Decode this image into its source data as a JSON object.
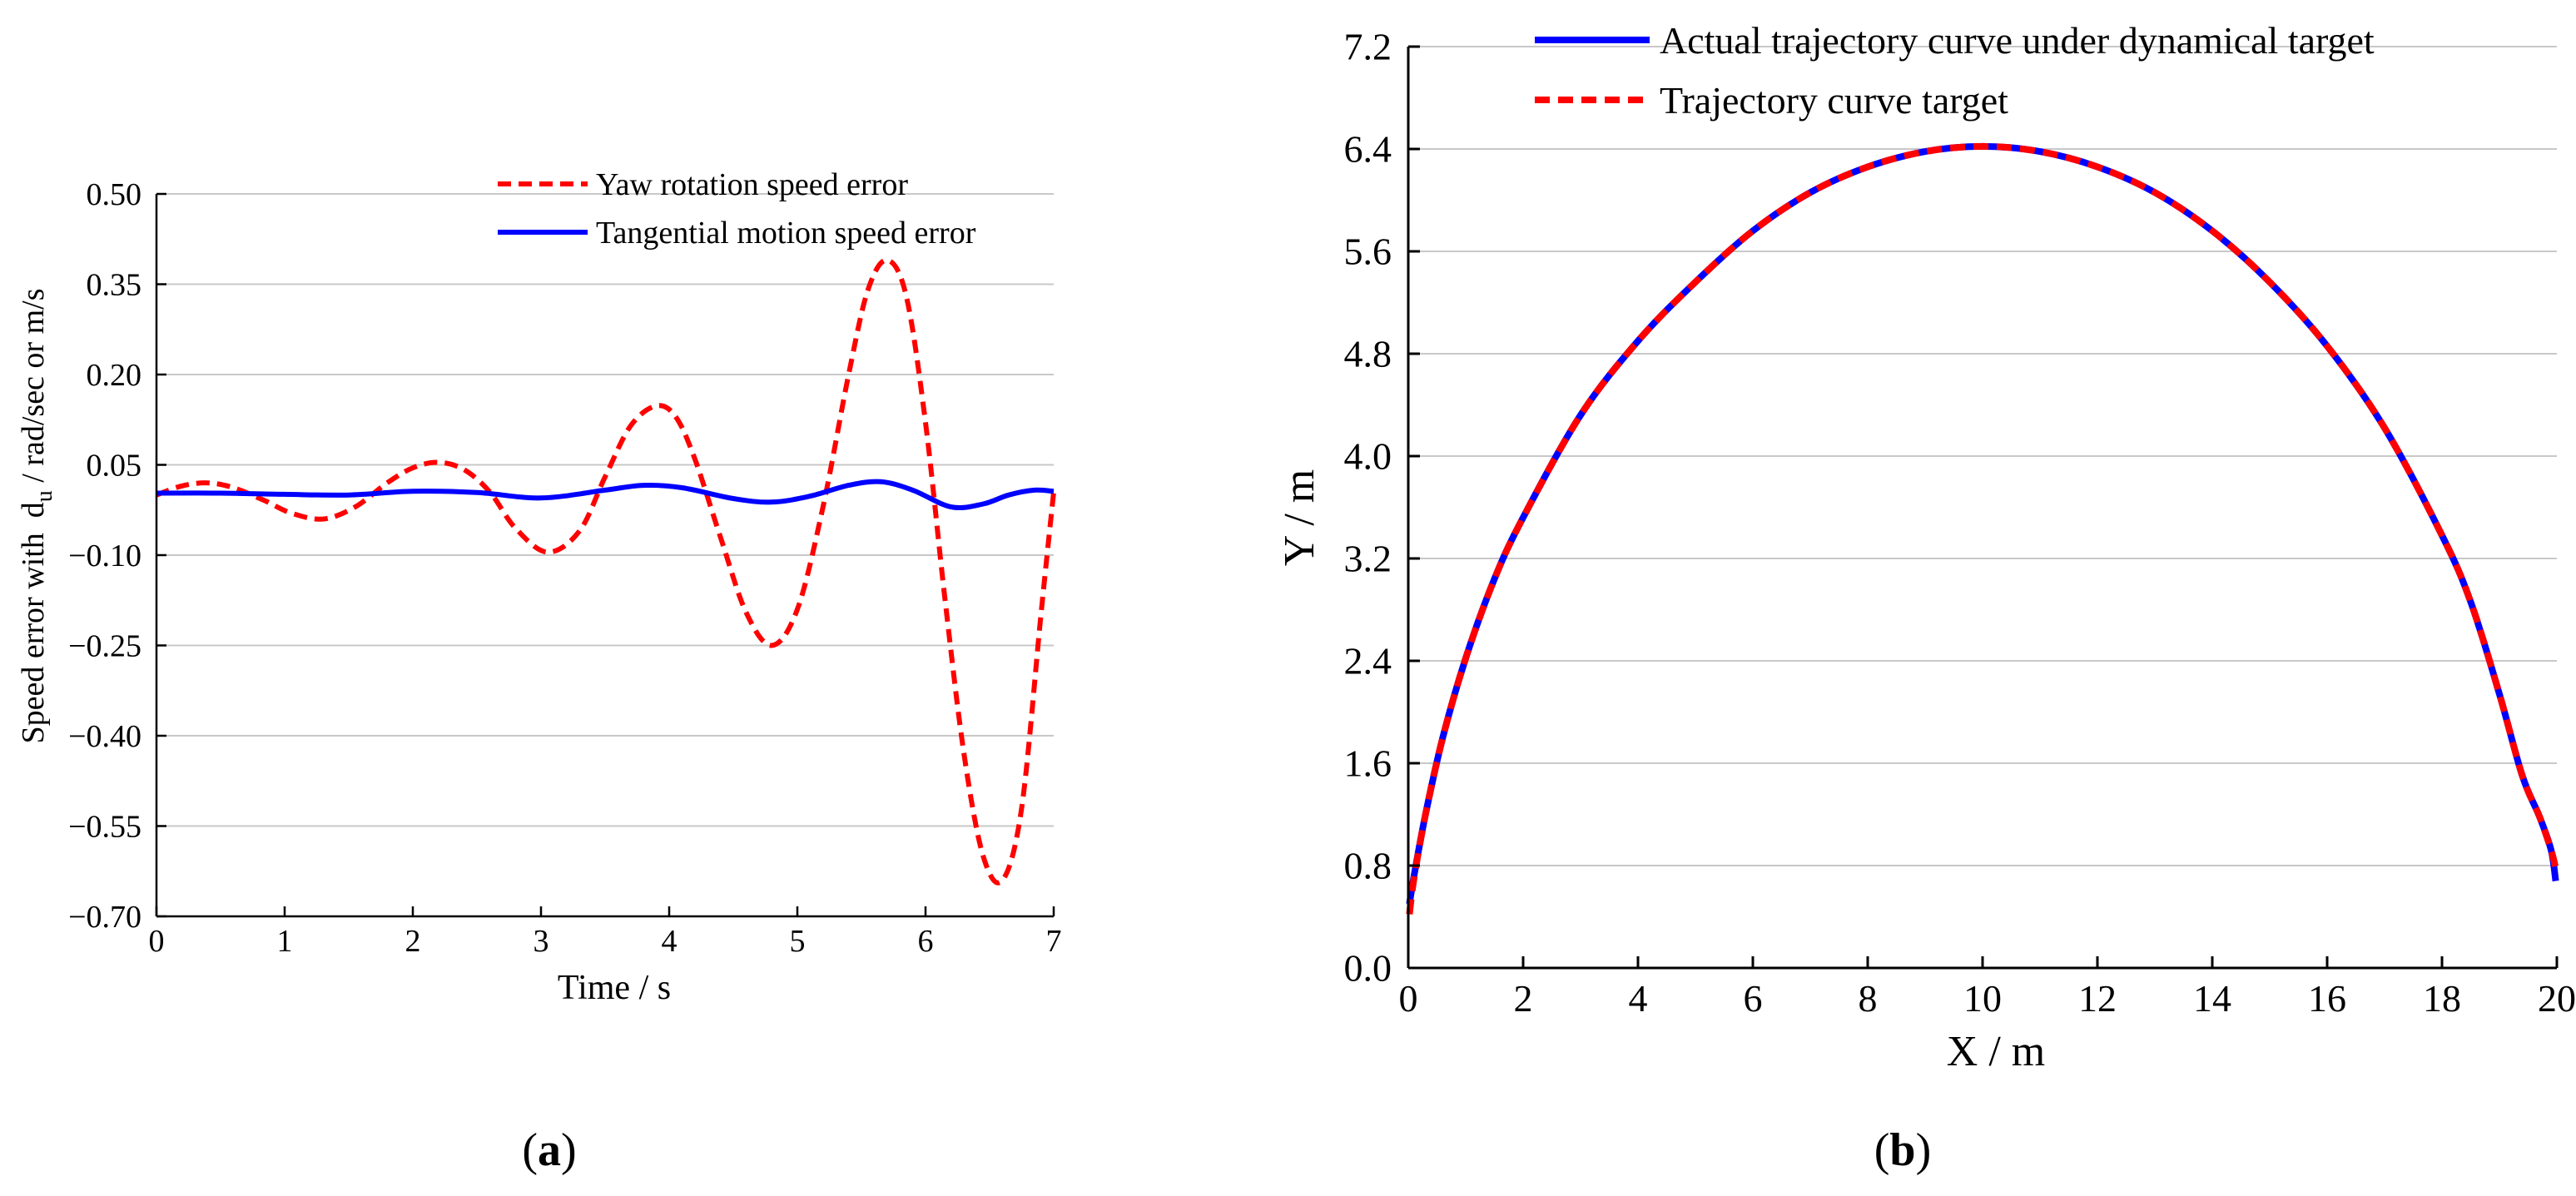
{
  "chart_data": [
    {
      "type": "line",
      "panel_label": "a",
      "title": "",
      "xlabel": "Time / s",
      "ylabel_prefix": "Speed error with",
      "ylabel_symbol": "d",
      "ylabel_subscript": "u",
      "ylabel_suffix": " / rad/sec or m/s",
      "xlim": [
        0,
        7
      ],
      "ylim": [
        -0.7,
        0.5
      ],
      "x_ticks": [
        0,
        1,
        2,
        3,
        4,
        5,
        6,
        7
      ],
      "y_ticks": [
        -0.7,
        -0.55,
        -0.4,
        -0.25,
        -0.1,
        0.05,
        0.2,
        0.35,
        0.5
      ],
      "x_tick_labels": [
        "0",
        "1",
        "2",
        "3",
        "4",
        "5",
        "6",
        "7"
      ],
      "y_tick_labels": [
        "−0.70",
        "−0.55",
        "−0.40",
        "−0.25",
        "−0.10",
        "0.05",
        "0.20",
        "0.35",
        "0.50"
      ],
      "grid": "horizontal",
      "legend_position": "top-right",
      "series": [
        {
          "name": "Yaw rotation speed error",
          "color": "#ff0000",
          "style": "dashed",
          "x": [
            0,
            0.2,
            0.4,
            0.6,
            0.85,
            1.05,
            1.3,
            1.55,
            1.8,
            2.0,
            2.2,
            2.4,
            2.6,
            2.8,
            3.05,
            3.3,
            3.5,
            3.7,
            3.9,
            4.05,
            4.2,
            4.4,
            4.6,
            4.8,
            5.0,
            5.2,
            5.4,
            5.55,
            5.7,
            5.85,
            6.0,
            6.15,
            6.3,
            6.45,
            6.6,
            6.75,
            6.9,
            7.0
          ],
          "y": [
            0.0,
            0.015,
            0.02,
            0.012,
            -0.01,
            -0.03,
            -0.04,
            -0.02,
            0.02,
            0.045,
            0.054,
            0.042,
            0.005,
            -0.055,
            -0.095,
            -0.06,
            0.03,
            0.115,
            0.148,
            0.13,
            0.06,
            -0.07,
            -0.195,
            -0.25,
            -0.19,
            -0.02,
            0.2,
            0.34,
            0.39,
            0.33,
            0.12,
            -0.17,
            -0.43,
            -0.6,
            -0.64,
            -0.52,
            -0.2,
            0.005
          ]
        },
        {
          "name": "Tangential motion speed error",
          "color": "#0000ff",
          "style": "solid",
          "x": [
            0,
            0.5,
            1.0,
            1.5,
            2.0,
            2.5,
            3.0,
            3.5,
            3.8,
            4.1,
            4.5,
            4.8,
            5.1,
            5.4,
            5.65,
            5.9,
            6.2,
            6.45,
            6.65,
            6.85,
            7.0
          ],
          "y": [
            0.003,
            0.003,
            0.001,
            0.0,
            0.006,
            0.004,
            -0.005,
            0.008,
            0.016,
            0.012,
            -0.006,
            -0.012,
            -0.002,
            0.016,
            0.022,
            0.008,
            -0.02,
            -0.015,
            0.0,
            0.008,
            0.006
          ]
        }
      ]
    },
    {
      "type": "line",
      "panel_label": "b",
      "title": "",
      "xlabel": "X / m",
      "ylabel": "Y / m",
      "xlim": [
        0,
        20
      ],
      "ylim": [
        0,
        7.2
      ],
      "x_ticks": [
        0,
        2,
        4,
        6,
        8,
        10,
        12,
        14,
        16,
        18,
        20
      ],
      "y_ticks": [
        0.0,
        0.8,
        1.6,
        2.4,
        3.2,
        4.0,
        4.8,
        5.6,
        6.4,
        7.2
      ],
      "x_tick_labels": [
        "0",
        "2",
        "4",
        "6",
        "8",
        "10",
        "12",
        "14",
        "16",
        "18",
        "20"
      ],
      "y_tick_labels": [
        "0.0",
        "0.8",
        "1.6",
        "2.4",
        "3.2",
        "4.0",
        "4.8",
        "5.6",
        "6.4",
        "7.2"
      ],
      "grid": "horizontal",
      "legend_position": "top",
      "series": [
        {
          "name": "Actual trajectory curve under dynamical target",
          "color": "#0000ff",
          "style": "solid",
          "x": [
            0.02,
            0.1,
            0.3,
            0.6,
            1.0,
            1.5,
            2.0,
            3.0,
            4.0,
            5.0,
            6.0,
            7.0,
            8.0,
            9.0,
            10.0,
            11.0,
            12.0,
            13.0,
            14.0,
            15.0,
            16.0,
            17.0,
            18.0,
            18.5,
            19.0,
            19.4,
            19.7,
            19.9,
            19.98
          ],
          "y": [
            0.5,
            0.72,
            1.2,
            1.8,
            2.42,
            3.04,
            3.52,
            4.32,
            4.9,
            5.36,
            5.76,
            6.06,
            6.26,
            6.38,
            6.42,
            6.38,
            6.26,
            6.06,
            5.76,
            5.36,
            4.86,
            4.22,
            3.38,
            2.86,
            2.14,
            1.5,
            1.18,
            0.92,
            0.68
          ]
        },
        {
          "name": "Trajectory curve target",
          "color": "#ff0000",
          "style": "dashed",
          "x": [
            0.02,
            0.1,
            0.3,
            0.6,
            1.0,
            1.5,
            2.0,
            3.0,
            4.0,
            5.0,
            6.0,
            7.0,
            8.0,
            9.0,
            10.0,
            11.0,
            12.0,
            13.0,
            14.0,
            15.0,
            16.0,
            17.0,
            18.0,
            18.5,
            19.0,
            19.4,
            19.7,
            19.9,
            19.98
          ],
          "y": [
            0.42,
            0.7,
            1.2,
            1.8,
            2.42,
            3.04,
            3.52,
            4.32,
            4.9,
            5.36,
            5.76,
            6.06,
            6.26,
            6.38,
            6.42,
            6.38,
            6.26,
            6.06,
            5.76,
            5.36,
            4.86,
            4.22,
            3.38,
            2.86,
            2.14,
            1.5,
            1.18,
            0.92,
            0.78
          ]
        }
      ]
    }
  ]
}
